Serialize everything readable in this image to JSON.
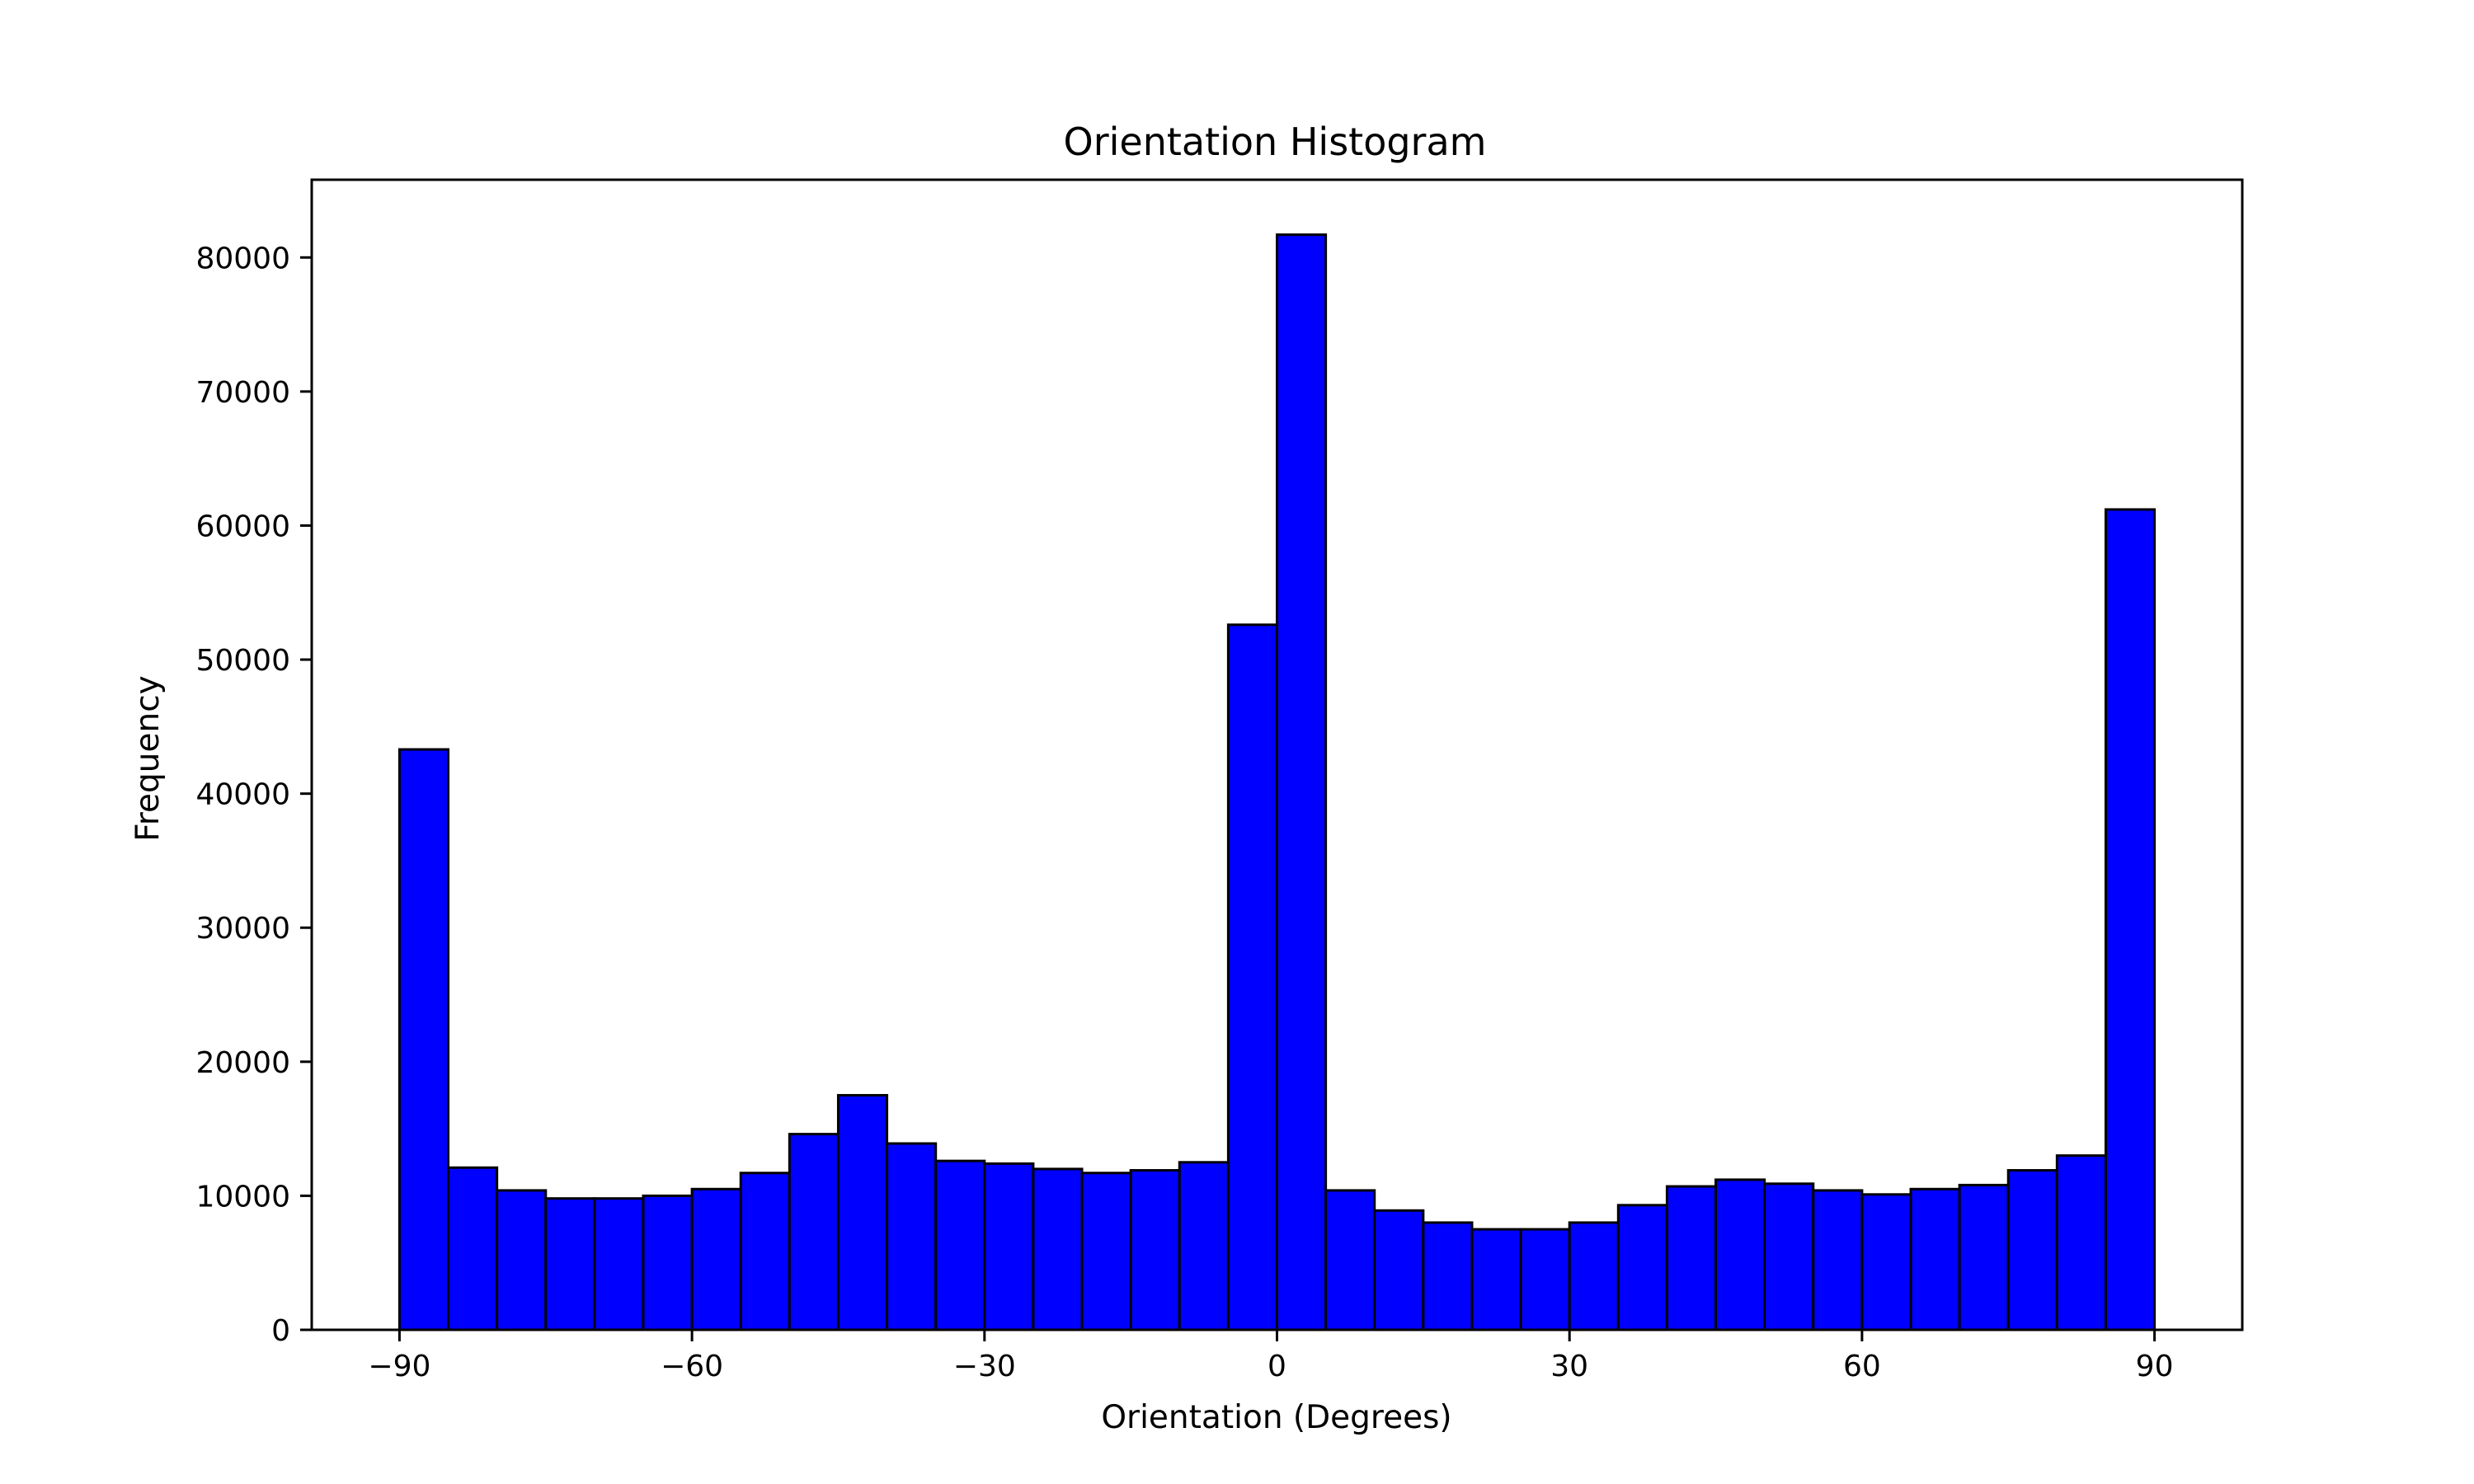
{
  "chart_data": {
    "type": "bar",
    "title": "Orientation Histogram",
    "xlabel": "Orientation (Degrees)",
    "ylabel": "Frequency",
    "bar_color": "#0000ff",
    "edge_color": "#000000",
    "xlim": [
      -99,
      99
    ],
    "ylim": [
      0,
      85800
    ],
    "xticks": [
      -90,
      -60,
      -30,
      0,
      30,
      60,
      90
    ],
    "xtick_labels": [
      "−90",
      "−60",
      "−30",
      "0",
      "30",
      "60",
      "90"
    ],
    "yticks": [
      0,
      10000,
      20000,
      30000,
      40000,
      50000,
      60000,
      70000,
      80000
    ],
    "ytick_labels": [
      "0",
      "10000",
      "20000",
      "30000",
      "40000",
      "50000",
      "60000",
      "70000",
      "80000"
    ],
    "bin_edges": [
      -90,
      -85,
      -80,
      -75,
      -70,
      -65,
      -60,
      -55,
      -50,
      -45,
      -40,
      -35,
      -30,
      -25,
      -20,
      -15,
      -10,
      -5,
      0,
      5,
      10,
      15,
      20,
      25,
      30,
      35,
      40,
      45,
      50,
      55,
      60,
      65,
      70,
      75,
      80,
      85,
      90
    ],
    "values": [
      43300,
      12100,
      10400,
      9800,
      9800,
      10000,
      10500,
      11700,
      14600,
      17500,
      13900,
      12600,
      12400,
      12000,
      11700,
      11900,
      12500,
      52600,
      81700,
      10400,
      8900,
      8000,
      7500,
      7500,
      8000,
      9300,
      10700,
      11200,
      10900,
      10400,
      10100,
      10500,
      10800,
      11900,
      13000,
      61200
    ]
  }
}
